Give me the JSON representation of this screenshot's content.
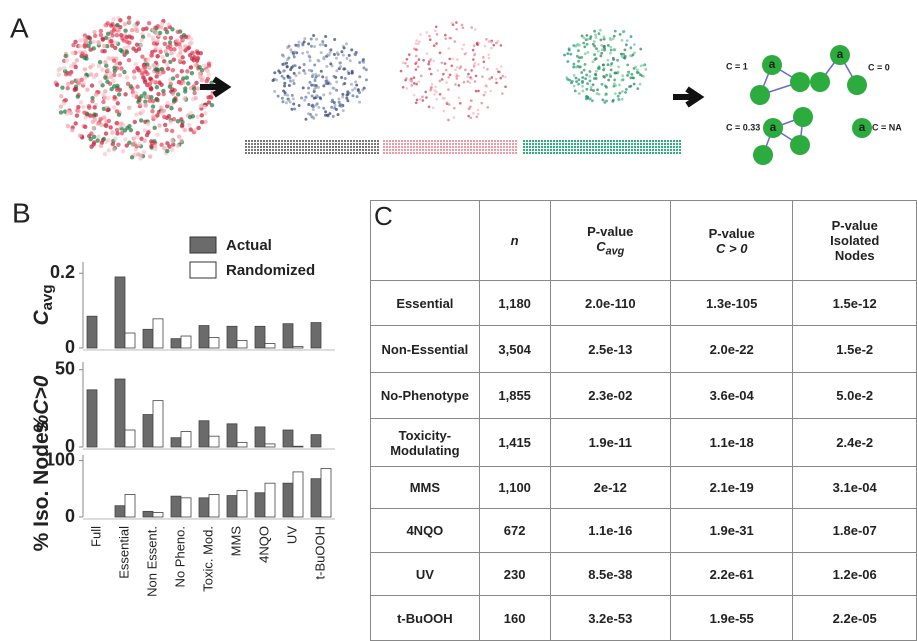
{
  "panel_a": {
    "label": "A",
    "node_label": "a",
    "examples": [
      "C = 1",
      "C = 0",
      "C = 0.33",
      "C = NA"
    ]
  },
  "panel_b": {
    "label": "B"
  },
  "chart_data": {
    "type": "bar",
    "categories": [
      "Full",
      "Essential",
      "Non Essent.",
      "No Pheno.",
      "Toxic. Mod.",
      "MMS",
      "4NQO",
      "UV",
      "t-BuOOH"
    ],
    "legend": [
      {
        "name": "Actual",
        "color": "#6b6b6b"
      },
      {
        "name": "Randomized",
        "color": "#ffffff"
      }
    ],
    "panels": [
      {
        "y_label": "C",
        "y_label_sub": "avg",
        "ylim": [
          0,
          0.23
        ],
        "yticks": [
          0,
          0.2
        ],
        "series": [
          {
            "values": [
              0.085,
              0.19,
              0.05,
              0.025,
              0.06,
              0.058,
              0.058,
              0.065,
              0.068
            ]
          },
          {
            "values": [
              null,
              0.04,
              0.078,
              0.032,
              0.028,
              0.02,
              0.012,
              0.004,
              null
            ]
          }
        ]
      },
      {
        "y_label": "%C>0",
        "ylim": [
          0,
          55
        ],
        "yticks": [
          0,
          50
        ],
        "series": [
          {
            "values": [
              37,
              44,
              21,
              6,
              17,
              15,
              13,
              11,
              8
            ]
          },
          {
            "values": [
              null,
              11,
              30,
              10,
              7,
              3,
              2,
              0.5,
              null
            ]
          }
        ]
      },
      {
        "y_label": "% Iso. Nodes",
        "ylim": [
          0,
          110
        ],
        "yticks": [
          0,
          100
        ],
        "series": [
          {
            "values": [
              null,
              20,
              10,
              37,
              34,
              38,
              43,
              60,
              68
            ]
          },
          {
            "values": [
              null,
              40,
              8,
              34,
              40,
              47,
              60,
              80,
              86
            ]
          }
        ]
      }
    ]
  },
  "panel_c": {
    "label": "C",
    "header": [
      [
        "n"
      ],
      [
        "P-value",
        "C",
        "avg"
      ],
      [
        "P-value",
        "C > 0"
      ],
      [
        "P-value",
        "Isolated",
        "Nodes"
      ]
    ],
    "rows": [
      [
        "Essential",
        "1,180",
        "2.0e-110",
        "1.3e-105",
        "1.5e-12"
      ],
      [
        "Non-Essential",
        "3,504",
        "2.5e-13",
        "2.0e-22",
        "1.5e-2"
      ],
      [
        "No-Phenotype",
        "1,855",
        "2.3e-02",
        "3.6e-04",
        "5.0e-2"
      ],
      [
        "Toxicity-Modulating",
        "1,415",
        "1.9e-11",
        "1.1e-18",
        "2.4e-2"
      ],
      [
        "MMS",
        "1,100",
        "2e-12",
        "2.1e-19",
        "3.1e-04"
      ],
      [
        "4NQO",
        "672",
        "1.1e-16",
        "1.9e-31",
        "1.8e-07"
      ],
      [
        "UV",
        "230",
        "8.5e-38",
        "2.2e-61",
        "1.2e-06"
      ],
      [
        "t-BuOOH",
        "160",
        "3.2e-53",
        "1.9e-55",
        "2.2e-05"
      ]
    ]
  }
}
